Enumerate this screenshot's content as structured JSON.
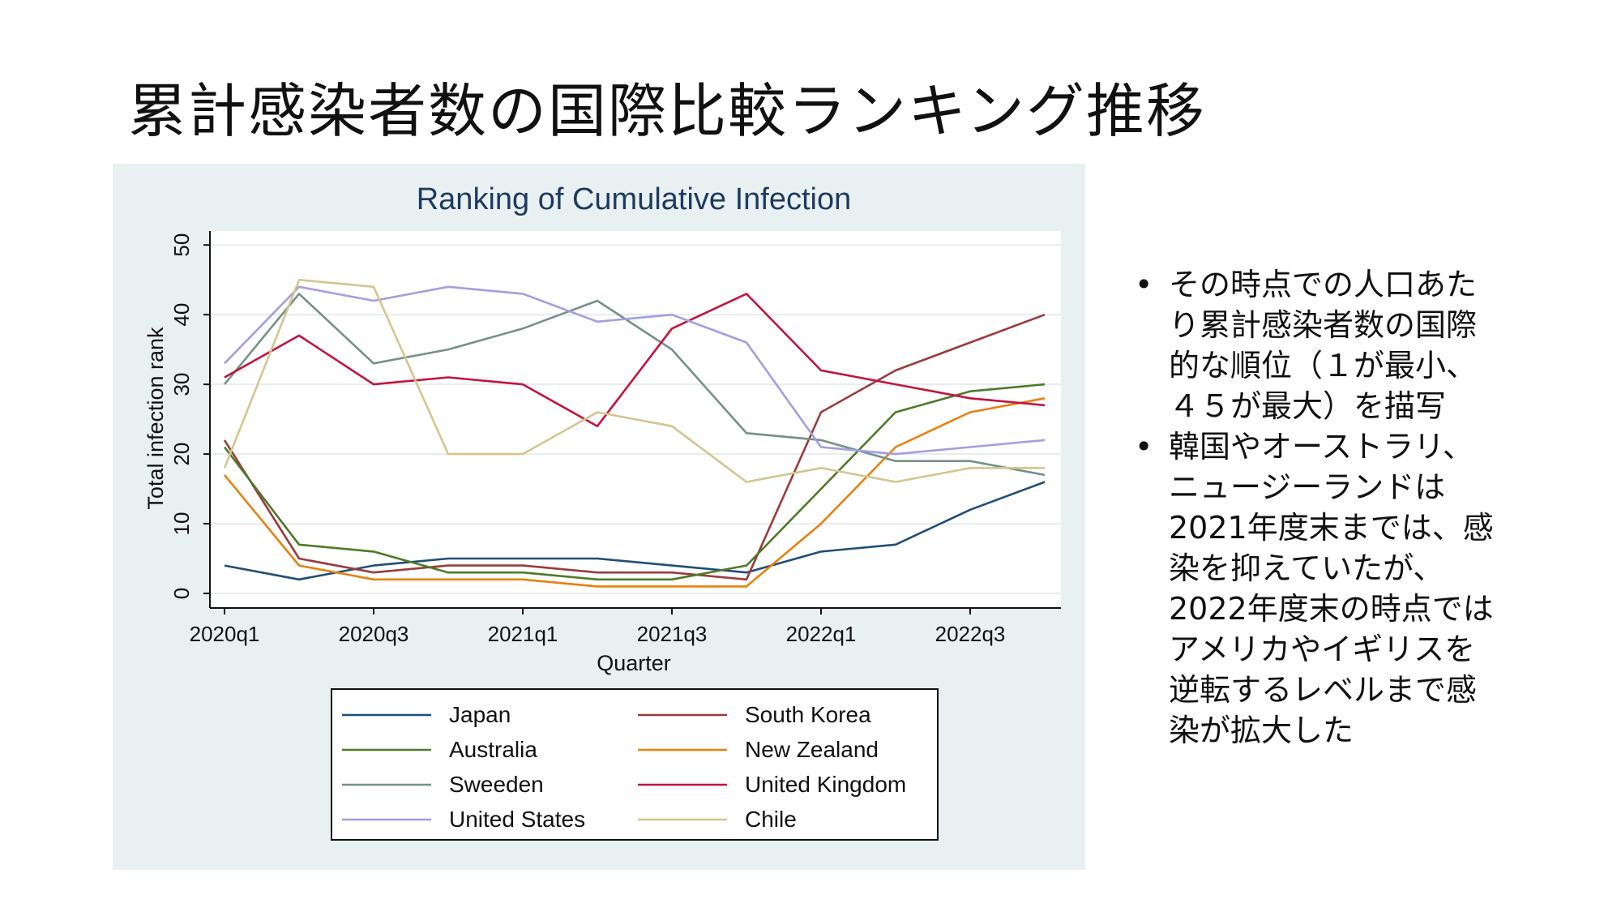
{
  "slide": {
    "title": "累計感染者数の国際比較ランキング推移",
    "bullets": [
      "その時点での人口あた\nり累計感染者数の国際\n的な順位（１が最小、\n４５が最大）を描写",
      "韓国やオーストラリ、\nニュージーランドは\n2021年度末までは、感\n染を抑えていたが、\n2022年度末の時点では\nアメリカやイギリスを\n逆転するレベルまで感\n染が拡大した"
    ]
  },
  "chart_data": {
    "type": "line",
    "title": "Ranking of Cumulative Infection",
    "xlabel": "Quarter",
    "ylabel": "Total infection rank",
    "x": [
      "2020q1",
      "2020q2",
      "2020q3",
      "2020q4",
      "2021q1",
      "2021q2",
      "2021q3",
      "2021q4",
      "2022q1",
      "2022q2",
      "2022q3",
      "2022q4"
    ],
    "xticks": [
      "2020q1",
      "2020q3",
      "2021q1",
      "2021q3",
      "2022q1",
      "2022q3"
    ],
    "yticks": [
      0,
      10,
      20,
      30,
      40,
      50
    ],
    "ylim": [
      0,
      52
    ],
    "grid": true,
    "legend_position": "bottom",
    "series": [
      {
        "name": "Japan",
        "color": "#1f4e79",
        "values": [
          4,
          2,
          4,
          5,
          5,
          5,
          4,
          3,
          6,
          7,
          12,
          16
        ]
      },
      {
        "name": "South Korea",
        "color": "#9b3b3b",
        "values": [
          22,
          5,
          3,
          4,
          4,
          3,
          3,
          2,
          26,
          32,
          36,
          40
        ]
      },
      {
        "name": "Australia",
        "color": "#4f7a28",
        "values": [
          21,
          7,
          6,
          3,
          3,
          2,
          2,
          4,
          15,
          26,
          29,
          30
        ]
      },
      {
        "name": "New Zealand",
        "color": "#e8800e",
        "values": [
          17,
          4,
          2,
          2,
          2,
          1,
          1,
          1,
          10,
          21,
          26,
          28
        ]
      },
      {
        "name": "Sweeden",
        "color": "#74918a",
        "values": [
          30,
          43,
          33,
          35,
          38,
          42,
          35,
          23,
          22,
          19,
          19,
          17
        ]
      },
      {
        "name": "United Kingdom",
        "color": "#c2143e",
        "values": [
          31,
          37,
          30,
          31,
          30,
          24,
          38,
          43,
          32,
          30,
          28,
          27
        ]
      },
      {
        "name": "United States",
        "color": "#a49ee0",
        "values": [
          33,
          44,
          42,
          44,
          43,
          39,
          40,
          36,
          21,
          20,
          21,
          22
        ]
      },
      {
        "name": "Chile",
        "color": "#d2c68e",
        "values": [
          18,
          45,
          44,
          20,
          20,
          26,
          24,
          16,
          18,
          16,
          18,
          18
        ]
      }
    ]
  }
}
